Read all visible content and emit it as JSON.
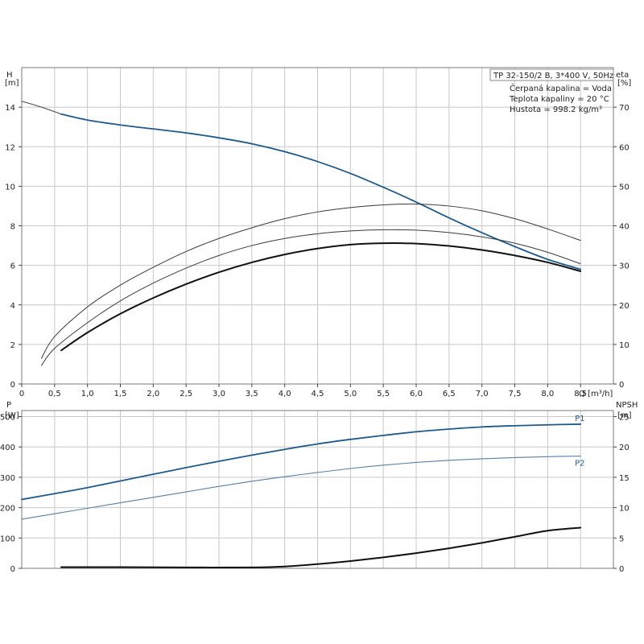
{
  "chart_data": [
    {
      "type": "line",
      "panel": "top",
      "y_axis_left": {
        "title": "H",
        "unit": "[m]",
        "range": [
          0,
          16
        ],
        "ticks": [
          0,
          2,
          4,
          6,
          8,
          10,
          12,
          14
        ]
      },
      "y_axis_right": {
        "title": "eta",
        "unit": "[%]",
        "range": [
          0,
          80
        ],
        "ticks": [
          0,
          10,
          20,
          30,
          40,
          50,
          60,
          70
        ]
      },
      "x_axis": {
        "label": "Q [m³/h]",
        "range": [
          0,
          9
        ],
        "ticks": [
          "0",
          "0,5",
          "1,0",
          "1,5",
          "2,0",
          "2,5",
          "3,0",
          "3,5",
          "4,0",
          "4,5",
          "5,0",
          "5,5",
          "6,0",
          "6,5",
          "7,0",
          "7,5",
          "8,0",
          "8,5"
        ]
      },
      "info": [
        "TP 32-150/2 B, 3*400 V, 50Hz",
        "Čerpaná kapalina = Voda",
        "Teplota kapaliny = 20 °C",
        "Hustota = 998.2 kg/m³"
      ],
      "grid": true,
      "series": [
        {
          "axis": "left",
          "color": "#4a4a4a",
          "width": 1.1,
          "x": [
            0,
            0.3,
            0.6
          ],
          "y": [
            14.3,
            14.0,
            13.65
          ]
        },
        {
          "axis": "left",
          "color": "#1f5a8a",
          "width": 1.8,
          "x": [
            0.6,
            1,
            1.5,
            2,
            2.5,
            3,
            3.5,
            4,
            4.5,
            5,
            5.5,
            6,
            6.5,
            7,
            7.5,
            8,
            8.5
          ],
          "y": [
            13.65,
            13.35,
            13.1,
            12.9,
            12.7,
            12.45,
            12.15,
            11.75,
            11.25,
            10.65,
            9.95,
            9.2,
            8.4,
            7.65,
            6.95,
            6.3,
            5.8
          ]
        },
        {
          "axis": "right",
          "color": "#3a3a3a",
          "width": 1.0,
          "x": [
            0.3,
            0.5,
            1,
            1.5,
            2,
            2.5,
            3,
            3.5,
            4,
            4.5,
            5,
            5.5,
            6,
            6.5,
            7,
            7.5,
            8,
            8.5
          ],
          "y": [
            6.5,
            12,
            19.5,
            25,
            29.5,
            33.5,
            36.8,
            39.5,
            41.8,
            43.5,
            44.6,
            45.3,
            45.5,
            45,
            43.8,
            41.8,
            39.2,
            36.3
          ]
        },
        {
          "axis": "right",
          "color": "#3a3a3a",
          "width": 1.0,
          "x": [
            0.3,
            0.5,
            1,
            1.5,
            2,
            2.5,
            3,
            3.5,
            4,
            4.5,
            5,
            5.5,
            6,
            6.5,
            7,
            7.5,
            8,
            8.5
          ],
          "y": [
            4.7,
            9,
            15.5,
            21,
            25.5,
            29.3,
            32.5,
            35,
            36.8,
            38,
            38.7,
            39,
            38.9,
            38.3,
            37.2,
            35.6,
            33.3,
            30.4
          ]
        },
        {
          "axis": "left",
          "color": "#111111",
          "width": 2.0,
          "x": [
            0.6,
            1,
            1.5,
            2,
            2.5,
            3,
            3.5,
            4,
            4.5,
            5,
            5.5,
            6,
            6.5,
            7,
            7.5,
            8,
            8.5
          ],
          "y": [
            1.7,
            2.6,
            3.55,
            4.35,
            5.05,
            5.65,
            6.15,
            6.55,
            6.85,
            7.05,
            7.12,
            7.1,
            6.98,
            6.78,
            6.5,
            6.15,
            5.7
          ]
        }
      ]
    },
    {
      "type": "line",
      "panel": "bottom",
      "y_axis_left": {
        "title": "P",
        "unit": "[W]",
        "range": [
          0,
          520
        ],
        "ticks": [
          0,
          100,
          200,
          300,
          400,
          500
        ]
      },
      "y_axis_right": {
        "title": "NPSH",
        "unit": "[m]",
        "range": [
          0,
          26
        ],
        "ticks": [
          0,
          5,
          10,
          15,
          20,
          25
        ]
      },
      "grid": true,
      "series": [
        {
          "name": "P1",
          "axis": "left",
          "color": "#1f5a8a",
          "width": 1.8,
          "x": [
            0,
            0.6,
            1,
            1.5,
            2,
            2.5,
            3,
            3.5,
            4,
            4.5,
            5,
            5.5,
            6,
            6.5,
            7,
            7.5,
            8,
            8.5
          ],
          "y": [
            227,
            250,
            266,
            288,
            310,
            332,
            353,
            373,
            392,
            410,
            425,
            438,
            450,
            459,
            466,
            470,
            473,
            475
          ]
        },
        {
          "name": "P2",
          "axis": "left",
          "color": "#5a7fa5",
          "width": 1.1,
          "x": [
            0,
            0.5,
            1,
            1.5,
            2,
            2.5,
            3,
            3.5,
            4,
            4.5,
            5,
            5.5,
            6,
            6.5,
            7,
            7.5,
            8,
            8.5
          ],
          "y": [
            162,
            180,
            198,
            216,
            234,
            252,
            270,
            287,
            302,
            316,
            329,
            340,
            349,
            356,
            361,
            365,
            368,
            370
          ]
        },
        {
          "axis": "right",
          "color": "#111111",
          "width": 2.0,
          "x": [
            0.6,
            1.5,
            2.5,
            3.5,
            4,
            4.5,
            5,
            5.5,
            6,
            6.5,
            7,
            7.5,
            8,
            8.5
          ],
          "y": [
            0.2,
            0.2,
            0.15,
            0.15,
            0.3,
            0.7,
            1.2,
            1.8,
            2.5,
            3.3,
            4.2,
            5.2,
            6.2,
            6.7
          ]
        }
      ]
    }
  ]
}
